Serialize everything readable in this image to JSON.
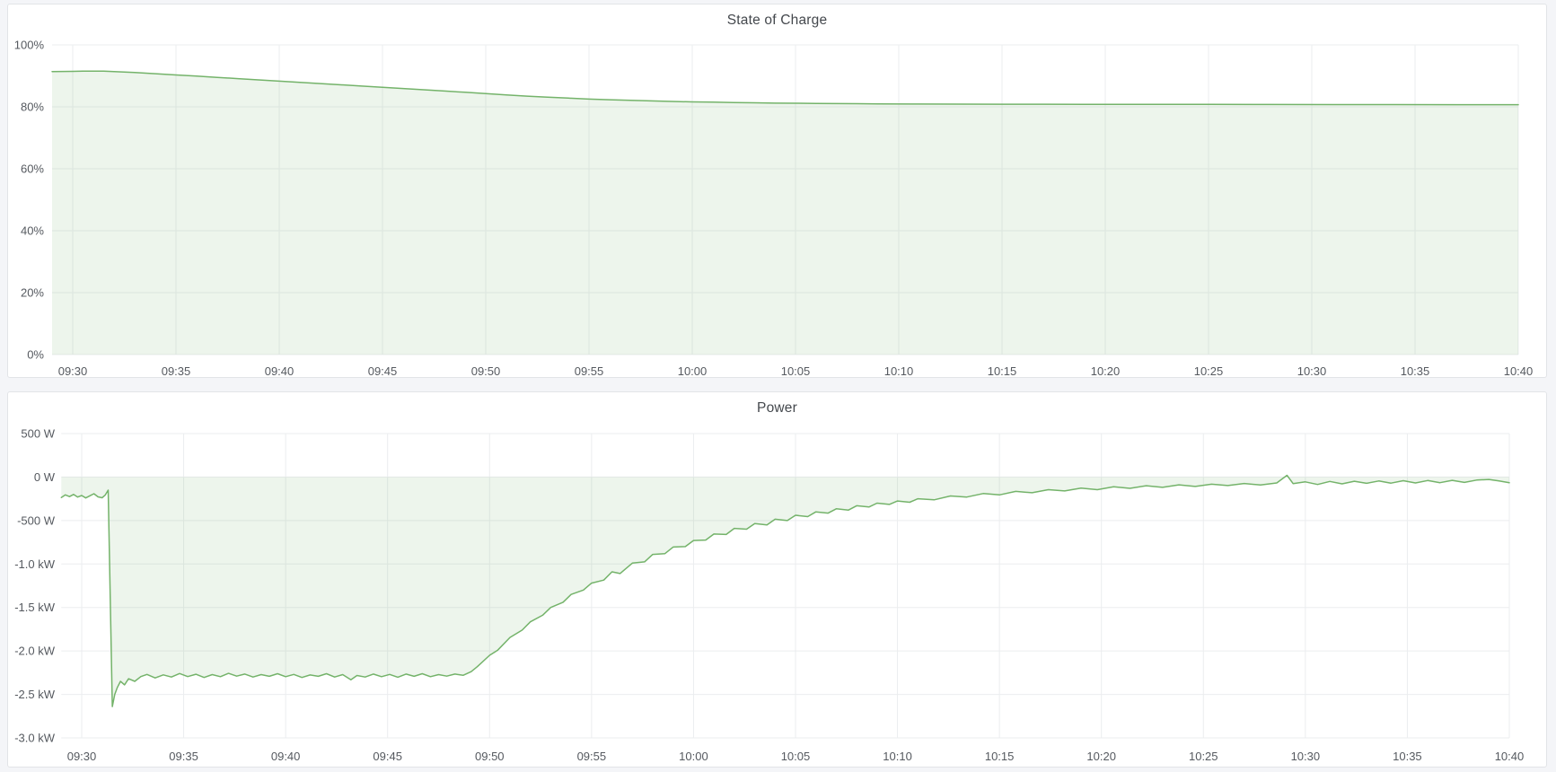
{
  "theme": {
    "page_background": "#f4f5f8",
    "panel_background": "#ffffff",
    "panel_border": "#e2e4e7",
    "title_color": "#44484d",
    "axis_label_color": "#55595f",
    "grid_color": "#ebedef",
    "series_line_color": "#74b36a",
    "series_fill_color": "rgba(116,179,106,0.13)"
  },
  "chart_data": [
    {
      "type": "area",
      "title": "State of Charge",
      "xlabel": "",
      "ylabel": "",
      "grid": true,
      "legend_position": "none",
      "x_unit": "time (minutes after 09:29)",
      "x_ticks": [
        "09:30",
        "09:35",
        "09:40",
        "09:45",
        "09:50",
        "09:55",
        "10:00",
        "10:05",
        "10:10",
        "10:15",
        "10:20",
        "10:25",
        "10:30",
        "10:35",
        "10:40"
      ],
      "x_tick_minutes": [
        1,
        6,
        11,
        16,
        21,
        26,
        31,
        36,
        41,
        46,
        51,
        56,
        61,
        66,
        71
      ],
      "y_ticks": [
        "100%",
        "80%",
        "60%",
        "40%",
        "20%",
        "0%"
      ],
      "y_tick_values": [
        100,
        80,
        60,
        40,
        20,
        0
      ],
      "ylim": [
        0,
        100
      ],
      "fill_baseline_value": 0,
      "series": [
        {
          "name": "State of Charge",
          "unit": "%",
          "points": [
            [
              0,
              91.4
            ],
            [
              1,
              91.45
            ],
            [
              1.5,
              91.5
            ],
            [
              2,
              91.55
            ],
            [
              2.5,
              91.5
            ],
            [
              3,
              91.4
            ],
            [
              3.5,
              91.25
            ],
            [
              4,
              91.1
            ],
            [
              5,
              90.7
            ],
            [
              6,
              90.3
            ],
            [
              7,
              89.9
            ],
            [
              8,
              89.5
            ],
            [
              9,
              89.1
            ],
            [
              10,
              88.7
            ],
            [
              11,
              88.3
            ],
            [
              12,
              87.9
            ],
            [
              13,
              87.5
            ],
            [
              14,
              87.1
            ],
            [
              15,
              86.7
            ],
            [
              16,
              86.3
            ],
            [
              17,
              85.9
            ],
            [
              18,
              85.5
            ],
            [
              19,
              85.1
            ],
            [
              20,
              84.7
            ],
            [
              21,
              84.25
            ],
            [
              22,
              83.85
            ],
            [
              23,
              83.45
            ],
            [
              24,
              83.1
            ],
            [
              25,
              82.8
            ],
            [
              26,
              82.5
            ],
            [
              27,
              82.3
            ],
            [
              28,
              82.1
            ],
            [
              29,
              81.9
            ],
            [
              30,
              81.75
            ],
            [
              31,
              81.6
            ],
            [
              32,
              81.5
            ],
            [
              33,
              81.4
            ],
            [
              34,
              81.3
            ],
            [
              35,
              81.2
            ],
            [
              36,
              81.15
            ],
            [
              37,
              81.1
            ],
            [
              38,
              81.05
            ],
            [
              39,
              81
            ],
            [
              40,
              80.95
            ],
            [
              42,
              80.9
            ],
            [
              44,
              80.88
            ],
            [
              46,
              80.85
            ],
            [
              48,
              80.83
            ],
            [
              50,
              80.8
            ],
            [
              53,
              80.8
            ],
            [
              56,
              80.78
            ],
            [
              59,
              80.75
            ],
            [
              62,
              80.73
            ],
            [
              65,
              80.72
            ],
            [
              68,
              80.7
            ],
            [
              71,
              80.7
            ]
          ]
        }
      ]
    },
    {
      "type": "area",
      "title": "Power",
      "xlabel": "",
      "ylabel": "",
      "grid": true,
      "legend_position": "none",
      "x_unit": "time (minutes after 09:29)",
      "x_ticks": [
        "09:30",
        "09:35",
        "09:40",
        "09:45",
        "09:50",
        "09:55",
        "10:00",
        "10:05",
        "10:10",
        "10:15",
        "10:20",
        "10:25",
        "10:30",
        "10:35",
        "10:40"
      ],
      "x_tick_minutes": [
        1,
        6,
        11,
        16,
        21,
        26,
        31,
        36,
        41,
        46,
        51,
        56,
        61,
        66,
        71
      ],
      "y_ticks": [
        "500 W",
        "0 W",
        "-500 W",
        "-1.0 kW",
        "-1.5 kW",
        "-2.0 kW",
        "-2.5 kW",
        "-3.0 kW"
      ],
      "y_tick_values": [
        500,
        0,
        -500,
        -1000,
        -1500,
        -2000,
        -2500,
        -3000
      ],
      "ylim": [
        -3000,
        500
      ],
      "fill_baseline_value": 0,
      "series": [
        {
          "name": "Power",
          "unit": "W",
          "points": [
            [
              0,
              -235
            ],
            [
              0.2,
              -205
            ],
            [
              0.4,
              -225
            ],
            [
              0.6,
              -200
            ],
            [
              0.8,
              -230
            ],
            [
              1,
              -212
            ],
            [
              1.2,
              -240
            ],
            [
              1.4,
              -215
            ],
            [
              1.6,
              -192
            ],
            [
              1.8,
              -228
            ],
            [
              2,
              -238
            ],
            [
              2.15,
              -208
            ],
            [
              2.3,
              -150
            ],
            [
              2.4,
              -1400
            ],
            [
              2.5,
              -2640
            ],
            [
              2.62,
              -2500
            ],
            [
              2.75,
              -2420
            ],
            [
              2.9,
              -2350
            ],
            [
              3.1,
              -2390
            ],
            [
              3.3,
              -2320
            ],
            [
              3.6,
              -2350
            ],
            [
              3.9,
              -2295
            ],
            [
              4.2,
              -2270
            ],
            [
              4.6,
              -2310
            ],
            [
              5,
              -2275
            ],
            [
              5.4,
              -2300
            ],
            [
              5.8,
              -2260
            ],
            [
              6.2,
              -2295
            ],
            [
              6.6,
              -2268
            ],
            [
              7,
              -2305
            ],
            [
              7.4,
              -2272
            ],
            [
              7.8,
              -2296
            ],
            [
              8.2,
              -2258
            ],
            [
              8.6,
              -2290
            ],
            [
              9,
              -2266
            ],
            [
              9.4,
              -2300
            ],
            [
              9.8,
              -2272
            ],
            [
              10.2,
              -2292
            ],
            [
              10.6,
              -2262
            ],
            [
              11,
              -2296
            ],
            [
              11.4,
              -2270
            ],
            [
              11.8,
              -2305
            ],
            [
              12.2,
              -2276
            ],
            [
              12.6,
              -2292
            ],
            [
              13,
              -2262
            ],
            [
              13.4,
              -2300
            ],
            [
              13.8,
              -2272
            ],
            [
              14.2,
              -2332
            ],
            [
              14.5,
              -2282
            ],
            [
              14.9,
              -2300
            ],
            [
              15.3,
              -2266
            ],
            [
              15.7,
              -2296
            ],
            [
              16.1,
              -2270
            ],
            [
              16.5,
              -2302
            ],
            [
              16.9,
              -2266
            ],
            [
              17.3,
              -2292
            ],
            [
              17.7,
              -2262
            ],
            [
              18.1,
              -2296
            ],
            [
              18.5,
              -2272
            ],
            [
              18.9,
              -2290
            ],
            [
              19.3,
              -2266
            ],
            [
              19.7,
              -2280
            ],
            [
              20.1,
              -2238
            ],
            [
              20.4,
              -2180
            ],
            [
              21,
              -2050
            ],
            [
              21.4,
              -1990
            ],
            [
              22,
              -1845
            ],
            [
              22.6,
              -1760
            ],
            [
              23,
              -1665
            ],
            [
              23.6,
              -1590
            ],
            [
              24,
              -1500
            ],
            [
              24.6,
              -1440
            ],
            [
              25,
              -1350
            ],
            [
              25.6,
              -1300
            ],
            [
              26,
              -1220
            ],
            [
              26.6,
              -1185
            ],
            [
              27,
              -1090
            ],
            [
              27.4,
              -1110
            ],
            [
              28,
              -990
            ],
            [
              28.6,
              -975
            ],
            [
              29,
              -890
            ],
            [
              29.6,
              -880
            ],
            [
              30,
              -805
            ],
            [
              30.6,
              -800
            ],
            [
              31,
              -730
            ],
            [
              31.6,
              -725
            ],
            [
              32,
              -655
            ],
            [
              32.6,
              -660
            ],
            [
              33,
              -590
            ],
            [
              33.6,
              -600
            ],
            [
              34,
              -535
            ],
            [
              34.6,
              -550
            ],
            [
              35,
              -485
            ],
            [
              35.6,
              -500
            ],
            [
              36,
              -440
            ],
            [
              36.6,
              -455
            ],
            [
              37,
              -400
            ],
            [
              37.6,
              -415
            ],
            [
              38,
              -365
            ],
            [
              38.6,
              -380
            ],
            [
              39,
              -330
            ],
            [
              39.6,
              -345
            ],
            [
              40,
              -300
            ],
            [
              40.6,
              -315
            ],
            [
              41,
              -275
            ],
            [
              41.6,
              -290
            ],
            [
              42,
              -250
            ],
            [
              42.8,
              -262
            ],
            [
              43.6,
              -218
            ],
            [
              44.4,
              -230
            ],
            [
              45.2,
              -190
            ],
            [
              46,
              -205
            ],
            [
              46.8,
              -165
            ],
            [
              47.6,
              -180
            ],
            [
              48.4,
              -145
            ],
            [
              49.2,
              -160
            ],
            [
              50,
              -128
            ],
            [
              50.8,
              -145
            ],
            [
              51.6,
              -112
            ],
            [
              52.4,
              -130
            ],
            [
              53.2,
              -100
            ],
            [
              54,
              -118
            ],
            [
              54.8,
              -90
            ],
            [
              55.6,
              -108
            ],
            [
              56.4,
              -82
            ],
            [
              57.2,
              -98
            ],
            [
              58,
              -74
            ],
            [
              58.8,
              -92
            ],
            [
              59.6,
              -68
            ],
            [
              60.1,
              20
            ],
            [
              60.4,
              -75
            ],
            [
              61,
              -55
            ],
            [
              61.6,
              -85
            ],
            [
              62.2,
              -50
            ],
            [
              62.8,
              -78
            ],
            [
              63.4,
              -48
            ],
            [
              64,
              -72
            ],
            [
              64.6,
              -45
            ],
            [
              65.2,
              -70
            ],
            [
              65.8,
              -42
            ],
            [
              66.4,
              -68
            ],
            [
              67,
              -40
            ],
            [
              67.6,
              -65
            ],
            [
              68.2,
              -38
            ],
            [
              68.8,
              -62
            ],
            [
              69.4,
              -35
            ],
            [
              70,
              -28
            ],
            [
              70.5,
              -45
            ],
            [
              71,
              -65
            ]
          ]
        }
      ]
    }
  ]
}
